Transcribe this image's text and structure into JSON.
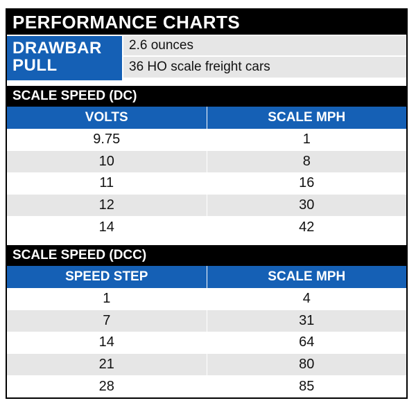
{
  "title": "PERFORMANCE CHARTS",
  "drawbar": {
    "label_line1": "DRAWBAR",
    "label_line2": "PULL",
    "values": [
      "2.6 ounces",
      "36 HO scale freight cars"
    ]
  },
  "dc": {
    "section_title": "SCALE SPEED (DC)",
    "headers": [
      "VOLTS",
      "SCALE MPH"
    ],
    "rows": [
      [
        "9.75",
        "1"
      ],
      [
        "10",
        "8"
      ],
      [
        "11",
        "16"
      ],
      [
        "12",
        "30"
      ],
      [
        "14",
        "42"
      ]
    ]
  },
  "dcc": {
    "section_title": "SCALE SPEED (DCC)",
    "headers": [
      "SPEED STEP",
      "SCALE MPH"
    ],
    "rows": [
      [
        "1",
        "4"
      ],
      [
        "7",
        "31"
      ],
      [
        "14",
        "64"
      ],
      [
        "21",
        "80"
      ],
      [
        "28",
        "85"
      ]
    ]
  },
  "colors": {
    "header_blue": "#1560b5",
    "bar_black": "#000000",
    "row_shade": "#e6e6e6"
  }
}
